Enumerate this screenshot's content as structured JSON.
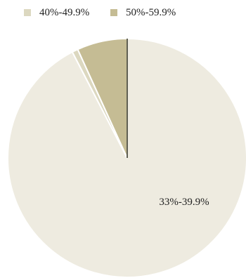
{
  "chart_data": {
    "type": "pie",
    "title": "",
    "slices": [
      {
        "label": "33%-39.9%",
        "value": 92.4,
        "color": "#eeebe0",
        "show_label": true
      },
      {
        "label": "40%-49.9%",
        "value": 0.8,
        "color": "#dcd8c0",
        "show_label": false
      },
      {
        "label": "50%-59.9%",
        "value": 6.8,
        "color": "#c5bc94",
        "show_label": false
      }
    ],
    "legend": {
      "placement": "top",
      "entries": [
        "40%-49.9%",
        "50%-59.9%"
      ]
    },
    "start_angle_deg": 0,
    "direction": "clockwise",
    "edge_color": "#2b2b1a"
  }
}
